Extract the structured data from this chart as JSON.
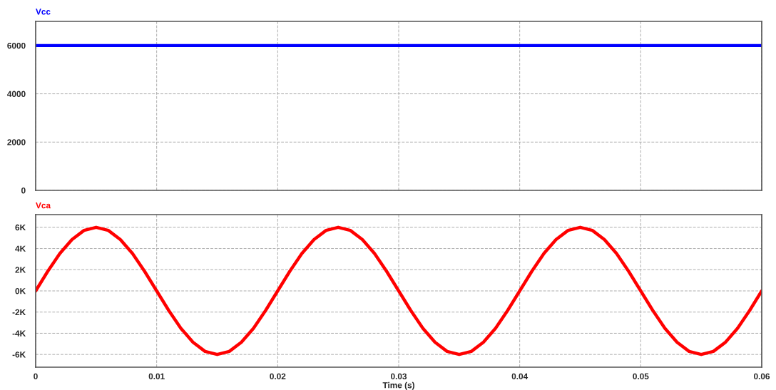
{
  "chart_data": [
    {
      "type": "line",
      "x": [
        0,
        0.06
      ],
      "series": [
        {
          "name": "Vcc",
          "color": "#0000ff",
          "values": [
            6000,
            6000
          ]
        }
      ],
      "xlim": [
        0,
        0.06
      ],
      "xticks": [
        0,
        0.01,
        0.02,
        0.03,
        0.04,
        0.05,
        0.06
      ],
      "ylim": [
        0,
        7000
      ],
      "yticks": [
        0,
        2000,
        4000,
        6000
      ],
      "grid": true,
      "tick_labels": "y",
      "line_style": "solid"
    },
    {
      "type": "line",
      "x": [
        0,
        0.001,
        0.002,
        0.003,
        0.004,
        0.005,
        0.006,
        0.007,
        0.008,
        0.009,
        0.01,
        0.011,
        0.012,
        0.013,
        0.014,
        0.015,
        0.016,
        0.017,
        0.018,
        0.019,
        0.02,
        0.021,
        0.022,
        0.023,
        0.024,
        0.025,
        0.026,
        0.027,
        0.028,
        0.029,
        0.03,
        0.031,
        0.032,
        0.033,
        0.034,
        0.035,
        0.036,
        0.037,
        0.038,
        0.039,
        0.04,
        0.041,
        0.042,
        0.043,
        0.044,
        0.045,
        0.046,
        0.047,
        0.048,
        0.049,
        0.05,
        0.051,
        0.052,
        0.053,
        0.054,
        0.055,
        0.056,
        0.057,
        0.058,
        0.059,
        0.06
      ],
      "series": [
        {
          "name": "Vca",
          "color": "#ff0000",
          "values": [
            0,
            1850,
            3530,
            4850,
            5710,
            6000,
            5710,
            4850,
            3530,
            1850,
            0,
            -1850,
            -3530,
            -4850,
            -5710,
            -6000,
            -5710,
            -4850,
            -3530,
            -1850,
            0,
            1850,
            3530,
            4850,
            5710,
            6000,
            5710,
            4850,
            3530,
            1850,
            0,
            -1850,
            -3530,
            -4850,
            -5710,
            -6000,
            -5710,
            -4850,
            -3530,
            -1850,
            0,
            1850,
            3530,
            4850,
            5710,
            6000,
            5710,
            4850,
            3530,
            1850,
            0,
            -1850,
            -3530,
            -4850,
            -5710,
            -6000,
            -5710,
            -4850,
            -3530,
            -1850,
            0
          ]
        }
      ],
      "xlabel": "Time (s)",
      "xlim": [
        0,
        0.06
      ],
      "xticks": [
        0,
        0.01,
        0.02,
        0.03,
        0.04,
        0.05,
        0.06
      ],
      "ylim": [
        -7200,
        7200
      ],
      "yticks": [
        {
          "value": -6000,
          "label": "-6K"
        },
        {
          "value": -4000,
          "label": "-4K"
        },
        {
          "value": -2000,
          "label": "-2K"
        },
        {
          "value": 0,
          "label": "0K"
        },
        {
          "value": 2000,
          "label": "2K"
        },
        {
          "value": 4000,
          "label": "4K"
        },
        {
          "value": 6000,
          "label": "6K"
        }
      ],
      "grid": true,
      "line_style": "solid"
    }
  ]
}
